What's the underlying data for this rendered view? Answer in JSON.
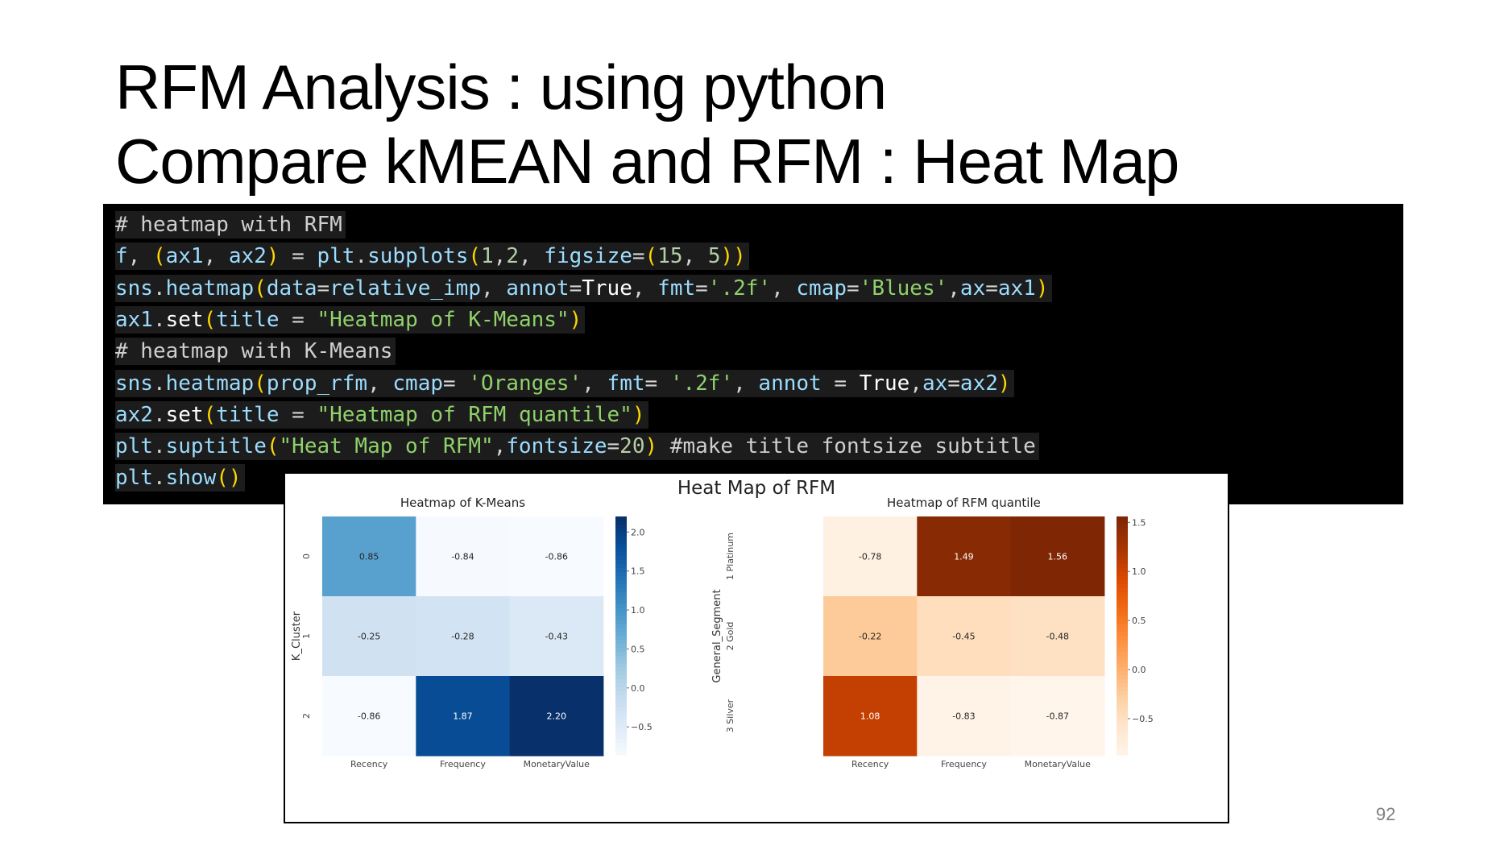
{
  "slide": {
    "title_line1": "RFM Analysis : using python",
    "title_line2": "Compare kMEAN and RFM : Heat Map",
    "page_number": "92"
  },
  "code": {
    "lines": [
      [
        [
          "c-com",
          "# heatmap with RFM"
        ]
      ],
      [
        [
          "c-id",
          "f"
        ],
        [
          "c-op",
          ", "
        ],
        [
          "c-br",
          "("
        ],
        [
          "c-id",
          "ax1"
        ],
        [
          "c-op",
          ", "
        ],
        [
          "c-id",
          "ax2"
        ],
        [
          "c-br",
          ")"
        ],
        [
          "c-op",
          " = "
        ],
        [
          "c-id",
          "plt"
        ],
        [
          "c-op",
          "."
        ],
        [
          "c-id",
          "subplots"
        ],
        [
          "c-br",
          "("
        ],
        [
          "c-num",
          "1"
        ],
        [
          "c-op",
          ","
        ],
        [
          "c-num",
          "2"
        ],
        [
          "c-op",
          ", "
        ],
        [
          "c-id",
          "figsize"
        ],
        [
          "c-op",
          "="
        ],
        [
          "c-br",
          "("
        ],
        [
          "c-num",
          "15"
        ],
        [
          "c-op",
          ", "
        ],
        [
          "c-num",
          "5"
        ],
        [
          "c-br",
          "))"
        ]
      ],
      [
        [
          "c-id",
          "sns"
        ],
        [
          "c-op",
          "."
        ],
        [
          "c-id",
          "heatmap"
        ],
        [
          "c-br",
          "("
        ],
        [
          "c-id",
          "data"
        ],
        [
          "c-op",
          "="
        ],
        [
          "c-id",
          "relative_imp"
        ],
        [
          "c-op",
          ", "
        ],
        [
          "c-id",
          "annot"
        ],
        [
          "c-op",
          "="
        ],
        [
          "c-kw",
          "True"
        ],
        [
          "c-op",
          ", "
        ],
        [
          "c-id",
          "fmt"
        ],
        [
          "c-op",
          "="
        ],
        [
          "c-str",
          "'.2f'"
        ],
        [
          "c-op",
          ", "
        ],
        [
          "c-id",
          "cmap"
        ],
        [
          "c-op",
          "="
        ],
        [
          "c-str",
          "'Blues'"
        ],
        [
          "c-op",
          ","
        ],
        [
          "c-id",
          "ax"
        ],
        [
          "c-op",
          "="
        ],
        [
          "c-id",
          "ax1"
        ],
        [
          "c-br",
          ")"
        ]
      ],
      [
        [
          "c-id",
          "ax1"
        ],
        [
          "c-op",
          "."
        ],
        [
          "c-kw",
          "set"
        ],
        [
          "c-br",
          "("
        ],
        [
          "c-id",
          "title"
        ],
        [
          "c-op",
          " = "
        ],
        [
          "c-str",
          "\"Heatmap of K-Means\""
        ],
        [
          "c-br",
          ")"
        ]
      ],
      [
        [
          "c-com",
          "# heatmap with K-Means"
        ]
      ],
      [
        [
          "c-id",
          "sns"
        ],
        [
          "c-op",
          "."
        ],
        [
          "c-id",
          "heatmap"
        ],
        [
          "c-br",
          "("
        ],
        [
          "c-id",
          "prop_rfm"
        ],
        [
          "c-op",
          ", "
        ],
        [
          "c-id",
          "cmap"
        ],
        [
          "c-op",
          "= "
        ],
        [
          "c-str",
          "'Oranges'"
        ],
        [
          "c-op",
          ", "
        ],
        [
          "c-id",
          "fmt"
        ],
        [
          "c-op",
          "= "
        ],
        [
          "c-str",
          "'.2f'"
        ],
        [
          "c-op",
          ", "
        ],
        [
          "c-id",
          "annot"
        ],
        [
          "c-op",
          " = "
        ],
        [
          "c-kw",
          "True"
        ],
        [
          "c-op",
          ","
        ],
        [
          "c-id",
          "ax"
        ],
        [
          "c-op",
          "="
        ],
        [
          "c-id",
          "ax2"
        ],
        [
          "c-br",
          ")"
        ]
      ],
      [
        [
          "c-id",
          "ax2"
        ],
        [
          "c-op",
          "."
        ],
        [
          "c-kw",
          "set"
        ],
        [
          "c-br",
          "("
        ],
        [
          "c-id",
          "title"
        ],
        [
          "c-op",
          " = "
        ],
        [
          "c-str",
          "\"Heatmap of RFM quantile\""
        ],
        [
          "c-br",
          ")"
        ]
      ],
      [
        [
          "c-id",
          "plt"
        ],
        [
          "c-op",
          "."
        ],
        [
          "c-id",
          "suptitle"
        ],
        [
          "c-br",
          "("
        ],
        [
          "c-str",
          "\"Heat Map of RFM\""
        ],
        [
          "c-op",
          ","
        ],
        [
          "c-id",
          "fontsize"
        ],
        [
          "c-op",
          "="
        ],
        [
          "c-num",
          "20"
        ],
        [
          "c-br",
          ")"
        ],
        [
          "c-com",
          " #make title fontsize subtitle"
        ]
      ],
      [
        [
          "c-id",
          "plt"
        ],
        [
          "c-op",
          "."
        ],
        [
          "c-id",
          "show"
        ],
        [
          "c-br",
          "()"
        ]
      ]
    ]
  },
  "chart_data": [
    {
      "type": "heatmap",
      "suptitle": "Heat Map of RFM",
      "title": "Heatmap of K-Means",
      "ylabel": "K_Cluster",
      "xlabel": "",
      "row_labels": [
        "0",
        "1",
        "2"
      ],
      "col_labels": [
        "Recency",
        "Frequency",
        "MonetaryValue"
      ],
      "values": [
        [
          0.85,
          -0.84,
          -0.86
        ],
        [
          -0.25,
          -0.28,
          -0.43
        ],
        [
          -0.86,
          1.87,
          2.2
        ]
      ],
      "cmap": "Blues",
      "colorbar_ticks": [
        "2.0",
        "1.5",
        "1.0",
        "0.5",
        "0.0",
        "−0.5"
      ],
      "colorbar_tick_values": [
        2.0,
        1.5,
        1.0,
        0.5,
        0.0,
        -0.5
      ],
      "vmin": -0.86,
      "vmax": 2.2
    },
    {
      "type": "heatmap",
      "title": "Heatmap of RFM quantile",
      "ylabel": "General_Segment",
      "xlabel": "",
      "row_labels": [
        "1 Platinum",
        "2 Gold",
        "3 Silver"
      ],
      "col_labels": [
        "Recency",
        "Frequency",
        "MonetaryValue"
      ],
      "values": [
        [
          -0.78,
          1.49,
          1.56
        ],
        [
          -0.22,
          -0.45,
          -0.48
        ],
        [
          1.08,
          -0.83,
          -0.87
        ]
      ],
      "cmap": "Oranges",
      "colorbar_ticks": [
        "1.5",
        "1.0",
        "0.5",
        "0.0",
        "−0.5"
      ],
      "colorbar_tick_values": [
        1.5,
        1.0,
        0.5,
        0.0,
        -0.5
      ],
      "vmin": -0.87,
      "vmax": 1.56
    }
  ]
}
